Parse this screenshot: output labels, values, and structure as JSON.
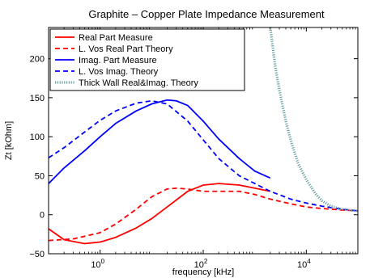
{
  "chart_data": {
    "type": "line",
    "title": "Graphite – Copper Plate Impedance Measurement",
    "xlabel": "frequency [kHz]",
    "ylabel": "Zt [kOhm]",
    "x_scale": "log",
    "xlim": [
      0.1,
      100000
    ],
    "ylim": [
      -50,
      240
    ],
    "x_ticks": [
      {
        "value": 1,
        "base": "10",
        "exp": "0"
      },
      {
        "value": 100,
        "base": "10",
        "exp": "2"
      },
      {
        "value": 10000,
        "base": "10",
        "exp": "4"
      }
    ],
    "y_ticks": [
      {
        "value": -50,
        "label": "−50"
      },
      {
        "value": 0,
        "label": "0"
      },
      {
        "value": 50,
        "label": "50"
      },
      {
        "value": 100,
        "label": "100"
      },
      {
        "value": 150,
        "label": "150"
      },
      {
        "value": 200,
        "label": "200"
      }
    ],
    "grid": false,
    "legend_position": "top-left",
    "series": [
      {
        "name": "Real Part Measure",
        "color": "#ff0000",
        "dash": "solid",
        "x": [
          0.1,
          0.2,
          0.5,
          1,
          2,
          5,
          10,
          20,
          50,
          100,
          200,
          500,
          1000,
          2000
        ],
        "y": [
          -18,
          -32,
          -37,
          -35,
          -29,
          -17,
          -5,
          10,
          30,
          38,
          40,
          38,
          34,
          30
        ]
      },
      {
        "name": "L. Vos Real Part Theory",
        "color": "#ff0000",
        "dash": "dashed",
        "x": [
          0.1,
          0.3,
          1,
          2,
          5,
          10,
          20,
          30,
          50,
          100,
          200,
          500,
          1000,
          2000,
          5000,
          10000,
          20000,
          50000,
          100000
        ],
        "y": [
          -33,
          -31,
          -23,
          -12,
          7,
          23,
          33,
          34,
          33,
          30,
          30,
          30,
          26,
          20,
          14,
          10,
          8,
          6,
          5
        ]
      },
      {
        "name": "Imag. Part Measure",
        "color": "#0000ff",
        "dash": "solid",
        "x": [
          0.1,
          0.2,
          0.5,
          1,
          2,
          5,
          10,
          20,
          30,
          50,
          100,
          200,
          500,
          1000,
          2000
        ],
        "y": [
          40,
          60,
          82,
          100,
          117,
          133,
          142,
          147,
          146,
          140,
          120,
          97,
          72,
          56,
          47
        ]
      },
      {
        "name": "L. Vos Imag. Theory",
        "color": "#0000ff",
        "dash": "dashed",
        "x": [
          0.1,
          0.2,
          0.5,
          1,
          2,
          5,
          10,
          20,
          50,
          100,
          200,
          500,
          1000,
          2000,
          5000,
          10000,
          20000,
          50000,
          100000
        ],
        "y": [
          73,
          86,
          106,
          121,
          133,
          143,
          146,
          142,
          120,
          96,
          72,
          50,
          40,
          30,
          20,
          15,
          11,
          7,
          5
        ]
      },
      {
        "name": "Thick Wall Real&Imag. Theory",
        "color": "#6aa2a2",
        "dash": "dotted",
        "x": [
          2000,
          2500,
          3000,
          4000,
          5000,
          7000,
          10000,
          15000,
          20000,
          30000,
          50000,
          100000
        ],
        "y": [
          240,
          190,
          160,
          120,
          95,
          65,
          45,
          27,
          18,
          11,
          7,
          5
        ]
      }
    ]
  }
}
